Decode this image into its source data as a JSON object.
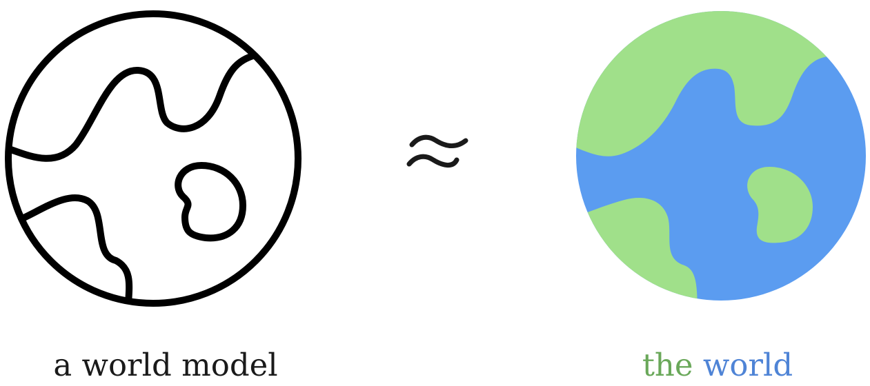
{
  "left_caption": "a world model",
  "right_caption": {
    "word1": "the",
    "word2": "world"
  },
  "relation_symbol": "≈",
  "colors": {
    "outline": "#000000",
    "land": "#a0e08a",
    "ocean": "#5b9cf0",
    "land_text": "#6aa85a",
    "ocean_text": "#4f84d6"
  },
  "icons": {
    "left": "globe-outline-icon",
    "middle": "approximately-equal-icon",
    "right": "globe-filled-icon"
  }
}
